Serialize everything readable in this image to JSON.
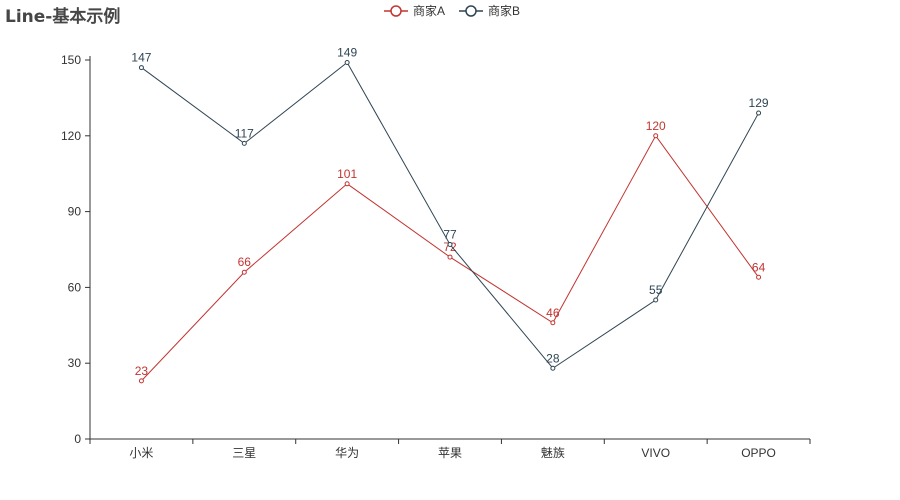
{
  "chart_data": {
    "type": "line",
    "title": "Line-基本示例",
    "categories": [
      "小米",
      "三星",
      "华为",
      "苹果",
      "魅族",
      "VIVO",
      "OPPO"
    ],
    "series": [
      {
        "name": "商家A",
        "color": "#c23531",
        "values": [
          23,
          66,
          101,
          72,
          46,
          120,
          64
        ]
      },
      {
        "name": "商家B",
        "color": "#2f4554",
        "values": [
          147,
          117,
          149,
          77,
          28,
          55,
          129
        ]
      }
    ],
    "yticks": [
      0,
      30,
      60,
      90,
      120,
      150
    ],
    "ylim": [
      0,
      150
    ],
    "legend_position": "top-center",
    "grid": false
  }
}
